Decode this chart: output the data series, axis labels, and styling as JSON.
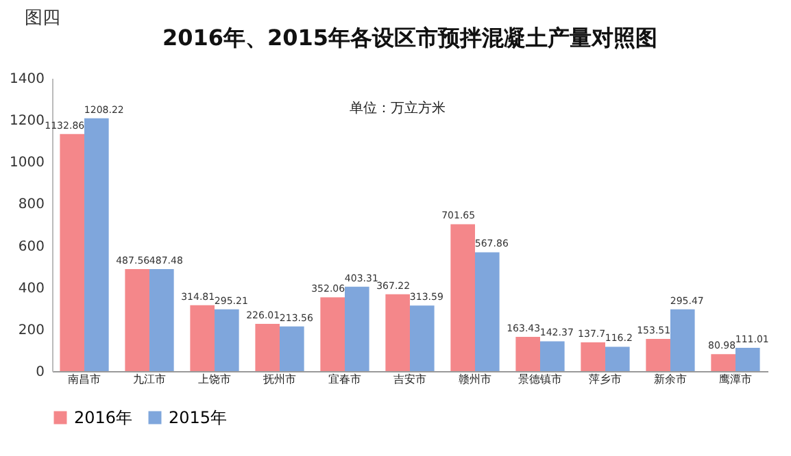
{
  "chart_data": {
    "type": "bar",
    "title": "2016年、2015年各设区市预拌混凝土产量对照图",
    "annotations": [
      "图四",
      "单位：万立方米"
    ],
    "categories": [
      "南昌市",
      "九江市",
      "上饶市",
      "抚州市",
      "宜春市",
      "吉安市",
      "赣州市",
      "景德镇市",
      "萍乡市",
      "新余市",
      "鹰潭市"
    ],
    "series": [
      {
        "name": "2016年",
        "color": "#f4878a",
        "values": [
          1132.86,
          487.56,
          314.81,
          226.01,
          352.06,
          367.22,
          701.65,
          163.43,
          137.7,
          153.51,
          80.98
        ]
      },
      {
        "name": "2015年",
        "color": "#7fa6dc",
        "values": [
          1208.22,
          487.48,
          295.21,
          213.56,
          403.31,
          313.59,
          567.86,
          142.37,
          116.2,
          295.47,
          111.01
        ]
      }
    ],
    "ylim": [
      0,
      1400
    ],
    "yticks": [
      0,
      200,
      400,
      600,
      800,
      1000,
      1200,
      1400
    ],
    "grid": false,
    "legend": "bottom",
    "data_labels": true
  }
}
